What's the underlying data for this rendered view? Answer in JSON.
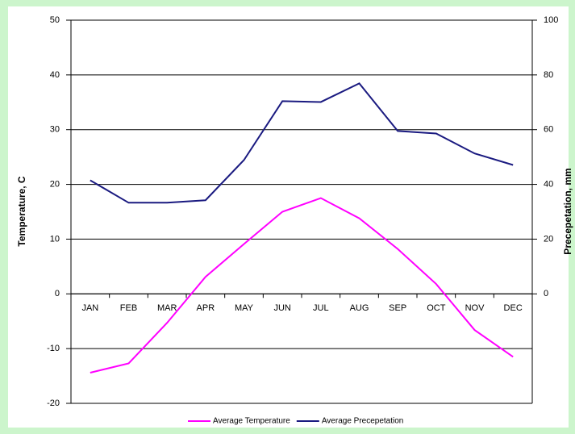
{
  "chart_data": {
    "type": "line",
    "ylabel": "Temperature, C",
    "y2label": "Precepetation, mm",
    "categories": [
      "JAN",
      "FEB",
      "MAR",
      "APR",
      "MAY",
      "JUN",
      "JUL",
      "AUG",
      "SEP",
      "OCT",
      "NOV",
      "DEC"
    ],
    "series": [
      {
        "name": "Average Temperature",
        "color": "#ff00ff",
        "values": [
          -14.4,
          -12.7,
          -5.3,
          3.1,
          9.1,
          15.0,
          17.5,
          13.8,
          8.2,
          1.8,
          -6.6,
          -11.5
        ]
      },
      {
        "name": "Average Precepetation",
        "color": "#1a1a80",
        "axis": "y2",
        "values": [
          41.5,
          33.3,
          33.3,
          34.2,
          48.9,
          70.4,
          70.1,
          76.9,
          59.5,
          58.6,
          51.3,
          47.1
        ]
      }
    ],
    "ylim": [
      -20,
      50
    ],
    "yticks": [
      -20,
      -10,
      0,
      10,
      20,
      30,
      40,
      50
    ],
    "y2lim": [
      -40,
      100
    ],
    "y2ticks": [
      0,
      20,
      40,
      60,
      80,
      100
    ],
    "grid": true,
    "legend": "bottom"
  }
}
